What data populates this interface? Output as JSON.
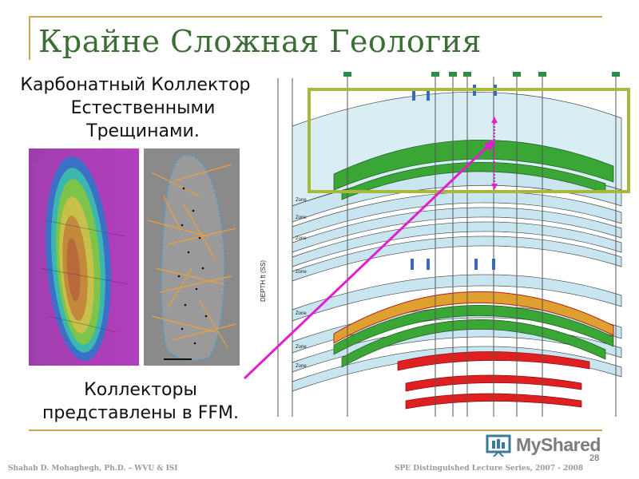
{
  "slide": {
    "title": "Крайне Сложная Геология",
    "caption_top": "Карбонатный Коллектор с Естественными Трещинами.",
    "caption_bottom": "Коллекторы представлены в FFM.",
    "page_number": "28",
    "footer_left": "Shahab D. Mohaghegh, Ph.D. – WVU & ISI",
    "footer_right": "SPE Distinguished Lecture Series, 2007 - 2008"
  },
  "logo": {
    "text": "MyShared",
    "icon": "presentation-board-icon"
  },
  "cross_section": {
    "axis_label": "DEPTH ft (SS)",
    "zone_label": "Zone",
    "colors": {
      "reservoir": "#3aa636",
      "water": "#c9e6f0",
      "fault": "#e02020",
      "highlight": "#a8b83a",
      "arrow": "#e020d0"
    }
  }
}
